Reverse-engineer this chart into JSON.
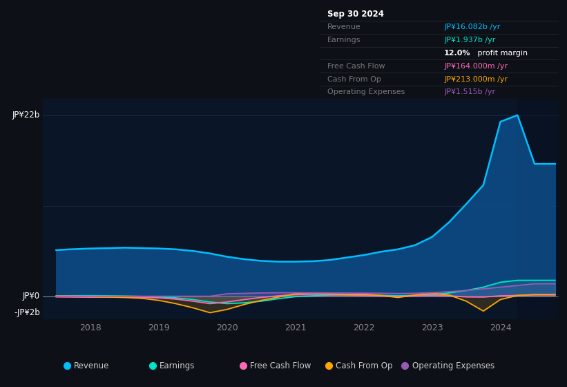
{
  "bg_color": "#0d1117",
  "plot_bg_color": "#0a1628",
  "grid_color": "#1a2a40",
  "zero_line_color": "#cccccc",
  "ylabel_top": "JP¥22b",
  "ylabel_zero": "JP¥0",
  "ylabel_neg": "-JP¥2b",
  "ylim_min": -2800000000,
  "ylim_max": 24000000000,
  "xtick_labels": [
    "2018",
    "2019",
    "2020",
    "2021",
    "2022",
    "2023",
    "2024"
  ],
  "xtick_positions": [
    2018,
    2019,
    2020,
    2021,
    2022,
    2023,
    2024
  ],
  "xlim_min": 2017.3,
  "xlim_max": 2024.85,
  "tooltip_title": "Sep 30 2024",
  "tooltip_revenue_label": "Revenue",
  "tooltip_revenue_value": "JP¥16.082b /yr",
  "tooltip_earnings_label": "Earnings",
  "tooltip_earnings_value": "JP¥1.937b /yr",
  "tooltip_margin": "12.0% profit margin",
  "tooltip_fcf_label": "Free Cash Flow",
  "tooltip_fcf_value": "JP¥164.000m /yr",
  "tooltip_cfo_label": "Cash From Op",
  "tooltip_cfo_value": "JP¥213.000m /yr",
  "tooltip_opex_label": "Operating Expenses",
  "tooltip_opex_value": "JP¥1.515b /yr",
  "legend_items": [
    {
      "label": "Revenue",
      "color": "#00bfff"
    },
    {
      "label": "Earnings",
      "color": "#00e5c8"
    },
    {
      "label": "Free Cash Flow",
      "color": "#ff69b4"
    },
    {
      "label": "Cash From Op",
      "color": "#ffa500"
    },
    {
      "label": "Operating Expenses",
      "color": "#9b59b6"
    }
  ],
  "revenue_color": "#00bfff",
  "revenue_fill": "#0a4a7a",
  "revenue_x": [
    2017.5,
    2017.7,
    2018.0,
    2018.3,
    2018.5,
    2018.75,
    2019.0,
    2019.25,
    2019.5,
    2019.75,
    2020.0,
    2020.25,
    2020.5,
    2020.75,
    2021.0,
    2021.25,
    2021.5,
    2021.75,
    2022.0,
    2022.25,
    2022.5,
    2022.75,
    2023.0,
    2023.25,
    2023.5,
    2023.75,
    2024.0,
    2024.25,
    2024.5,
    2024.65,
    2024.8
  ],
  "revenue_y": [
    5600000000,
    5700000000,
    5800000000,
    5850000000,
    5900000000,
    5850000000,
    5800000000,
    5700000000,
    5500000000,
    5200000000,
    4800000000,
    4500000000,
    4300000000,
    4200000000,
    4200000000,
    4250000000,
    4400000000,
    4700000000,
    5000000000,
    5400000000,
    5700000000,
    6200000000,
    7200000000,
    9000000000,
    11200000000,
    13500000000,
    21200000000,
    22000000000,
    16082000000,
    16082000000,
    16082000000
  ],
  "earnings_color": "#00e5c8",
  "earnings_x": [
    2017.5,
    2017.75,
    2018.0,
    2018.25,
    2018.5,
    2018.75,
    2019.0,
    2019.25,
    2019.5,
    2019.75,
    2020.0,
    2020.25,
    2020.5,
    2020.75,
    2021.0,
    2021.25,
    2021.5,
    2021.75,
    2022.0,
    2022.25,
    2022.5,
    2022.75,
    2023.0,
    2023.25,
    2023.5,
    2023.75,
    2024.0,
    2024.25,
    2024.5,
    2024.65,
    2024.8
  ],
  "earnings_y": [
    50000000,
    70000000,
    80000000,
    60000000,
    30000000,
    -20000000,
    -80000000,
    -200000000,
    -400000000,
    -700000000,
    -900000000,
    -800000000,
    -600000000,
    -300000000,
    -50000000,
    50000000,
    150000000,
    200000000,
    150000000,
    100000000,
    50000000,
    100000000,
    200000000,
    400000000,
    700000000,
    1100000000,
    1700000000,
    1937000000,
    1937000000,
    1937000000,
    1937000000
  ],
  "fcf_color": "#ff69b4",
  "fcf_x": [
    2017.5,
    2017.75,
    2018.0,
    2018.25,
    2018.5,
    2018.75,
    2019.0,
    2019.25,
    2019.5,
    2019.75,
    2020.0,
    2020.25,
    2020.5,
    2020.75,
    2021.0,
    2021.25,
    2021.5,
    2021.75,
    2022.0,
    2022.25,
    2022.5,
    2022.75,
    2023.0,
    2023.25,
    2023.5,
    2023.75,
    2024.0,
    2024.25,
    2024.5,
    2024.65,
    2024.8
  ],
  "fcf_y": [
    -80000000,
    -100000000,
    -120000000,
    -100000000,
    -80000000,
    -120000000,
    -200000000,
    -350000000,
    -600000000,
    -900000000,
    -700000000,
    -400000000,
    -150000000,
    50000000,
    200000000,
    250000000,
    200000000,
    150000000,
    100000000,
    50000000,
    -50000000,
    50000000,
    100000000,
    50000000,
    -80000000,
    -100000000,
    50000000,
    100000000,
    164000000,
    164000000,
    164000000
  ],
  "cfo_color": "#ffa500",
  "cfo_x": [
    2017.5,
    2017.75,
    2018.0,
    2018.25,
    2018.5,
    2018.75,
    2019.0,
    2019.25,
    2019.5,
    2019.75,
    2020.0,
    2020.25,
    2020.5,
    2020.75,
    2021.0,
    2021.25,
    2021.5,
    2021.75,
    2022.0,
    2022.25,
    2022.5,
    2022.75,
    2023.0,
    2023.25,
    2023.5,
    2023.75,
    2024.0,
    2024.25,
    2024.5,
    2024.65,
    2024.8
  ],
  "cfo_y": [
    30000000,
    10000000,
    -50000000,
    -100000000,
    -150000000,
    -250000000,
    -500000000,
    -900000000,
    -1400000000,
    -2000000000,
    -1600000000,
    -1000000000,
    -500000000,
    -100000000,
    300000000,
    400000000,
    300000000,
    200000000,
    250000000,
    100000000,
    -150000000,
    150000000,
    350000000,
    150000000,
    -600000000,
    -1800000000,
    -400000000,
    100000000,
    213000000,
    213000000,
    213000000
  ],
  "opex_color": "#9b59b6",
  "opex_x": [
    2017.5,
    2017.75,
    2018.0,
    2018.25,
    2018.5,
    2018.75,
    2019.0,
    2019.25,
    2019.5,
    2019.75,
    2020.0,
    2020.25,
    2020.5,
    2020.75,
    2021.0,
    2021.25,
    2021.5,
    2021.75,
    2022.0,
    2022.25,
    2022.5,
    2022.75,
    2023.0,
    2023.25,
    2023.5,
    2023.75,
    2024.0,
    2024.25,
    2024.5,
    2024.65,
    2024.8
  ],
  "opex_y": [
    0,
    0,
    0,
    0,
    0,
    0,
    0,
    0,
    0,
    0,
    300000000,
    350000000,
    400000000,
    420000000,
    420000000,
    410000000,
    400000000,
    390000000,
    380000000,
    360000000,
    330000000,
    360000000,
    430000000,
    560000000,
    700000000,
    900000000,
    1100000000,
    1300000000,
    1515000000,
    1515000000,
    1515000000
  ]
}
